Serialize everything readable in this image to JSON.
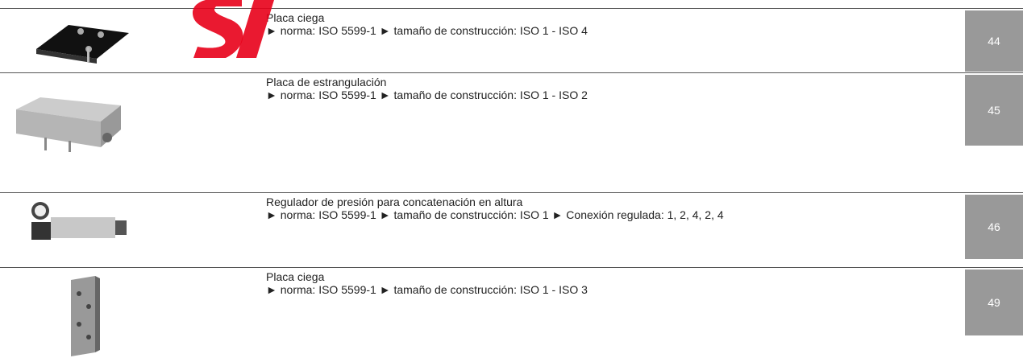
{
  "rows": [
    {
      "title": "Placa ciega",
      "specs": "► norma: ISO 5599-1 ► tamaño de construcción: ISO 1 - ISO 4",
      "page": "44"
    },
    {
      "title": "Placa de estrangulación",
      "specs": "► norma: ISO 5599-1 ► tamaño de construcción: ISO 1 - ISO 2",
      "page": "45"
    },
    {
      "title": "Regulador de presión para concatenación en altura",
      "specs": "► norma: ISO 5599-1 ► tamaño de construcción: ISO 1 ► Conexión regulada: 1, 2, 4, 2, 4",
      "page": "46"
    },
    {
      "title": "Placa ciega",
      "specs": "► norma: ISO 5599-1 ► tamaño de construcción: ISO 1 - ISO 3",
      "page": "49"
    }
  ]
}
